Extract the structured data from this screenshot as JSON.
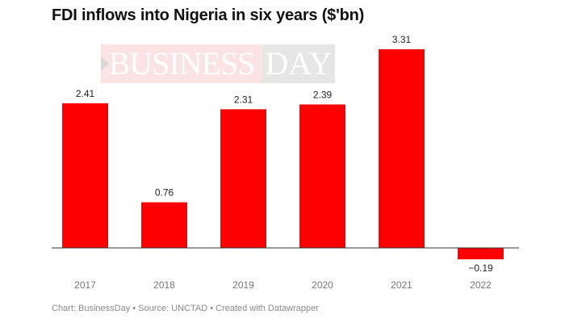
{
  "chart_data": {
    "type": "bar",
    "title": "FDI inflows into Nigeria in six years ($'bn)",
    "categories": [
      "2017",
      "2018",
      "2019",
      "2020",
      "2021",
      "2022"
    ],
    "values": [
      2.41,
      0.76,
      2.31,
      2.39,
      3.31,
      -0.19
    ],
    "value_labels": [
      "2.41",
      "0.76",
      "2.31",
      "2.39",
      "3.31",
      "−0.19"
    ],
    "xlabel": "",
    "ylabel": "",
    "ylim": [
      -0.19,
      3.31
    ],
    "grid": false,
    "bar_color": "#ff0000"
  },
  "footer": "Chart: BusinessDay • Source: UNCTAD • Created with Datawrapper",
  "watermark": {
    "part1": "BUSINESS",
    "part2": "DAY"
  }
}
